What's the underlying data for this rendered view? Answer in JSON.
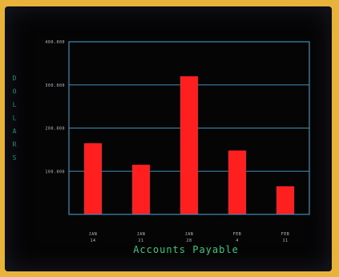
{
  "chart_data": {
    "type": "bar",
    "title": "",
    "xlabel": "Accounts Payable",
    "ylabel": "DOLLARS",
    "categories": [
      {
        "line1": "JAN",
        "line2": "14"
      },
      {
        "line1": "JAN",
        "line2": "21"
      },
      {
        "line1": "JAN",
        "line2": "28"
      },
      {
        "line1": "FEB",
        "line2": "4"
      },
      {
        "line1": "FEB",
        "line2": "11"
      }
    ],
    "values": [
      165000,
      115000,
      320000,
      148000,
      65000
    ],
    "yticks": [
      {
        "value": 400000,
        "label": "400.000"
      },
      {
        "value": 300000,
        "label": "300.000"
      },
      {
        "value": 200000,
        "label": "200.000"
      },
      {
        "value": 100000,
        "label": "100.000"
      }
    ],
    "ylim": [
      0,
      400000
    ],
    "grid": true,
    "legend": "none",
    "colors": {
      "bar": "#ff1f1f",
      "frame": "#3f8fb6",
      "grid": "#3f8fb6",
      "tick_text": "#b9bec6",
      "ylabel": "#1f8f8a",
      "xlabel": "#39c97a"
    }
  }
}
